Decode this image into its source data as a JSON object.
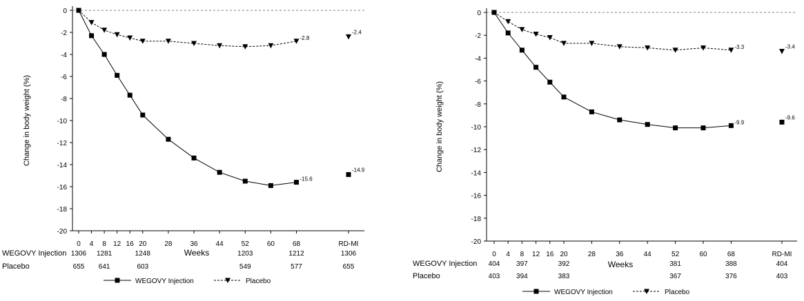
{
  "colors": {
    "axis": "#000000",
    "wegovy": "#000000",
    "placebo": "#000000",
    "zero_line": "#7f7f7f"
  },
  "chart_data": [
    {
      "type": "line",
      "title": "",
      "xlabel": "Weeks",
      "ylabel": "Change in body weight (%)",
      "ylim": [
        -20,
        0
      ],
      "yticks": [
        0,
        -2,
        -4,
        -6,
        -8,
        -10,
        -12,
        -14,
        -16,
        -18,
        -20
      ],
      "xticks": [
        "0",
        "4",
        "8",
        "12",
        "16",
        "20",
        "28",
        "36",
        "44",
        "52",
        "60",
        "68",
        "RD-MI"
      ],
      "x": [
        0,
        4,
        8,
        12,
        16,
        20,
        28,
        36,
        44,
        52,
        60,
        68
      ],
      "series": [
        {
          "name": "WEGOVY Injection",
          "marker": "square",
          "line": "solid",
          "values": [
            0,
            -2.3,
            -4.0,
            -5.9,
            -7.7,
            -9.5,
            -11.7,
            -13.4,
            -14.7,
            -15.5,
            -15.9,
            -15.6
          ],
          "end_label": "-15.6",
          "rdmi_value": -14.9,
          "rdmi_label": "-14.9"
        },
        {
          "name": "Placebo",
          "marker": "triangle-down",
          "line": "dashed",
          "values": [
            0,
            -1.1,
            -1.8,
            -2.2,
            -2.5,
            -2.8,
            -2.8,
            -3.0,
            -3.2,
            -3.3,
            -3.2,
            -2.8
          ],
          "end_label": "-2.8",
          "rdmi_value": -2.4,
          "rdmi_label": "-2.4"
        }
      ],
      "risk_table": [
        {
          "label": "WEGOVY Injection",
          "entries": [
            [
              "0",
              "1306"
            ],
            [
              "8",
              "1281"
            ],
            [
              "20",
              "1248"
            ],
            [
              "52",
              "1203"
            ],
            [
              "68",
              "1212"
            ],
            [
              "RD-MI",
              "1306"
            ]
          ]
        },
        {
          "label": "Placebo",
          "entries": [
            [
              "0",
              "655"
            ],
            [
              "8",
              "641"
            ],
            [
              "20",
              "603"
            ],
            [
              "52",
              "549"
            ],
            [
              "68",
              "577"
            ],
            [
              "RD-MI",
              "655"
            ]
          ]
        }
      ],
      "legend": {
        "placement": "bottom",
        "items": [
          "WEGOVY Injection",
          "Placebo"
        ]
      }
    },
    {
      "type": "line",
      "title": "",
      "xlabel": "Weeks",
      "ylabel": "Change in body weight (%)",
      "ylim": [
        -20,
        0
      ],
      "yticks": [
        0,
        -2,
        -4,
        -6,
        -8,
        -10,
        -12,
        -14,
        -16,
        -18,
        -20
      ],
      "xticks": [
        "0",
        "4",
        "8",
        "12",
        "16",
        "20",
        "28",
        "36",
        "44",
        "52",
        "60",
        "68",
        "RD-MI"
      ],
      "x": [
        0,
        4,
        8,
        12,
        16,
        20,
        28,
        36,
        44,
        52,
        60,
        68
      ],
      "series": [
        {
          "name": "WEGOVY Injection",
          "marker": "square",
          "line": "solid",
          "values": [
            0,
            -1.8,
            -3.3,
            -4.8,
            -6.1,
            -7.4,
            -8.7,
            -9.4,
            -9.8,
            -10.1,
            -10.1,
            -9.9
          ],
          "end_label": "-9.9",
          "rdmi_value": -9.6,
          "rdmi_label": "-9.6"
        },
        {
          "name": "Placebo",
          "marker": "triangle-down",
          "line": "dashed",
          "values": [
            0,
            -0.8,
            -1.5,
            -1.9,
            -2.2,
            -2.7,
            -2.7,
            -3.0,
            -3.1,
            -3.3,
            -3.1,
            -3.3
          ],
          "end_label": "-3.3",
          "rdmi_value": -3.4,
          "rdmi_label": "-3.4"
        }
      ],
      "risk_table": [
        {
          "label": "WEGOVY Injection",
          "entries": [
            [
              "0",
              "404"
            ],
            [
              "8",
              "397"
            ],
            [
              "20",
              "392"
            ],
            [
              "52",
              "381"
            ],
            [
              "68",
              "388"
            ],
            [
              "RD-MI",
              "404"
            ]
          ]
        },
        {
          "label": "Placebo",
          "entries": [
            [
              "0",
              "403"
            ],
            [
              "8",
              "394"
            ],
            [
              "20",
              "383"
            ],
            [
              "52",
              "367"
            ],
            [
              "68",
              "376"
            ],
            [
              "RD-MI",
              "403"
            ]
          ]
        }
      ],
      "legend": {
        "placement": "bottom",
        "items": [
          "WEGOVY Injection",
          "Placebo"
        ]
      }
    }
  ]
}
